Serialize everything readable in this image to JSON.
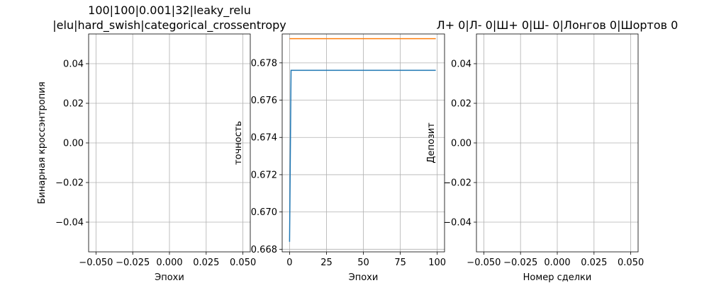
{
  "chart_data": [
    {
      "type": "line",
      "title_lines": [
        "100|100|0.001|32|leaky_relu",
        "|elu|hard_swish|categorical_crossentropy"
      ],
      "xlabel": "Эпохи",
      "ylabel": "Бинарная кроссэнтропия",
      "xlim": [
        -0.055,
        0.055
      ],
      "ylim": [
        -0.055,
        0.055
      ],
      "xticks": [
        -0.05,
        -0.025,
        0.0,
        0.025,
        0.05
      ],
      "xtick_labels": [
        "−0.050",
        "−0.025",
        "0.000",
        "0.025",
        "0.050"
      ],
      "yticks": [
        -0.04,
        -0.02,
        0.0,
        0.02,
        0.04
      ],
      "ytick_labels": [
        "−0.04",
        "−0.02",
        "0.00",
        "0.02",
        "0.04"
      ],
      "grid": true,
      "series": []
    },
    {
      "type": "line",
      "title_lines": [],
      "xlabel": "Эпохи",
      "ylabel": "точность",
      "xlim": [
        -5,
        104.95
      ],
      "ylim": [
        0.66786,
        0.67955
      ],
      "xticks": [
        0,
        25,
        50,
        75,
        100
      ],
      "xtick_labels": [
        "0",
        "25",
        "50",
        "75",
        "100"
      ],
      "yticks": [
        0.668,
        0.67,
        0.672,
        0.674,
        0.676,
        0.678
      ],
      "ytick_labels": [
        "0.668",
        "0.670",
        "0.672",
        "0.674",
        "0.676",
        "0.678"
      ],
      "grid": true,
      "series": [
        {
          "color": "#1f77b4",
          "x": [
            0,
            1,
            99
          ],
          "y": [
            0.6684,
            0.6776,
            0.6776
          ]
        },
        {
          "color": "#ff7f0e",
          "x": [
            0,
            99
          ],
          "y": [
            0.6793,
            0.6793
          ]
        }
      ]
    },
    {
      "type": "line",
      "title_lines": [
        "Л+ 0|Л- 0|Ш+ 0|Ш- 0|Лонгов 0|Шортов 0"
      ],
      "xlabel": "Номер сделки",
      "ylabel": "Депозит",
      "xlim": [
        -0.055,
        0.055
      ],
      "ylim": [
        -0.055,
        0.055
      ],
      "xticks": [
        -0.05,
        -0.025,
        0.0,
        0.025,
        0.05
      ],
      "xtick_labels": [
        "−0.050",
        "−0.025",
        "0.000",
        "0.025",
        "0.050"
      ],
      "yticks": [
        -0.04,
        -0.02,
        0.0,
        0.02,
        0.04
      ],
      "ytick_labels": [
        "−0.04",
        "−0.02",
        "0.00",
        "0.02",
        "0.04"
      ],
      "grid": true,
      "series": []
    }
  ],
  "colors": {
    "grid": "#b0b0b0",
    "axes": "#000000"
  }
}
